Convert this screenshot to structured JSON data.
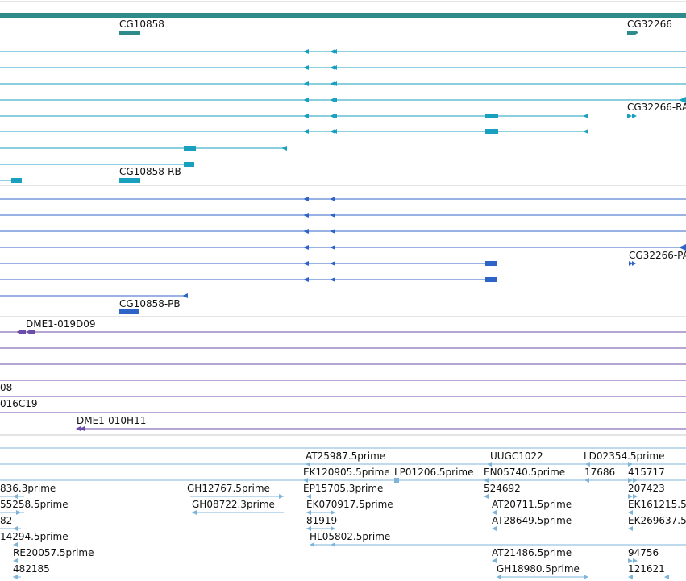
{
  "colors": {
    "gene_track": "#2e8b8a",
    "transcript_a": "#1aa0bf",
    "transcript_b": "#2f64c7",
    "clone": "#6c4ea8",
    "est": "#7fb4d9",
    "separator": "#c8c8c8"
  },
  "labels": {
    "gene_cg10858": "CG10858",
    "gene_cg32266": "CG32266",
    "tx_cg32266_ra": "CG32266-RA",
    "tx_cg10858_rb": "CG10858-RB",
    "pr_cg32266_pa": "CG32266-PA",
    "pr_cg10858_pb": "CG10858-PB",
    "clone_019d09": "DME1-019D09",
    "clone_end_08": "08",
    "clone_016c19": "016C19",
    "clone_010h11": "DME1-010H11",
    "est_at25987": "AT25987.5prime",
    "est_uugc1022": "UUGC1022",
    "est_ld02354": "LD02354.5prime",
    "est_ek120905": "EK120905.5prime",
    "est_lp01206": "LP01206.5prime",
    "est_en05740": "EN05740.5prime",
    "est_17686": "17686",
    "est_415717": "415717",
    "est_836_3": "836.3prime",
    "est_gh12767": "GH12767.5prime",
    "est_ep15705": "EP15705.3prime",
    "est_524692": "524692",
    "est_207423": "207423",
    "est_55258": "55258.5prime",
    "est_gh08722": "GH08722.3prime",
    "est_ek070917": "EK070917.5prime",
    "est_at20711": "AT20711.5prime",
    "est_ek161215": "EK161215.5",
    "est_82": "82",
    "est_81919": "81919",
    "est_at28649": "AT28649.5prime",
    "est_ek269637": "EK269637.5",
    "est_14294": "14294.5prime",
    "est_hl05802": "HL05802.5prime",
    "est_re20057": "RE20057.5prime",
    "est_at21486": "AT21486.5prime",
    "est_94756": "94756",
    "est_482185": "482185",
    "est_gh18980": "GH18980.5prime",
    "est_121621": "121621"
  }
}
